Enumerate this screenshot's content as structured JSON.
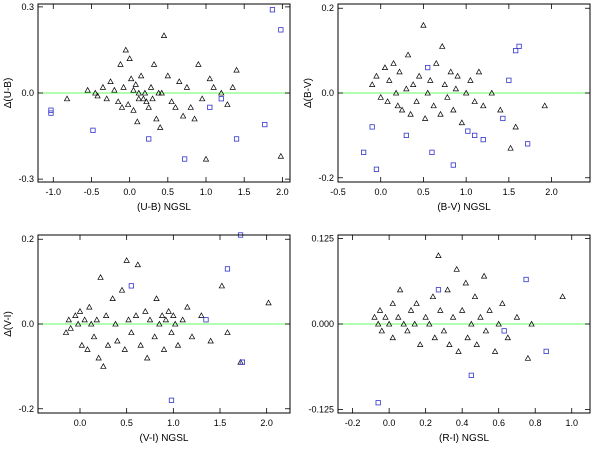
{
  "colors": {
    "frame": "#000000",
    "zero_line": "#66ff66",
    "triangle": "#000000",
    "square": "#3333cc"
  },
  "chart_data": [
    {
      "type": "scatter",
      "xlabel": "(U-B) NGSL",
      "ylabel": "Δ(U-B)",
      "xlim": [
        -1.2,
        2.1
      ],
      "ylim": [
        -0.31,
        0.31
      ],
      "xticks": [
        -1.0,
        -0.5,
        0.0,
        0.5,
        1.0,
        1.5,
        2.0
      ],
      "xtick_labels": [
        "-1.0",
        "-0.5",
        "0.0",
        "0.5",
        "1.0",
        "1.5",
        "2.0"
      ],
      "yticks": [
        -0.3,
        0.0,
        0.3
      ],
      "ytick_labels": [
        "-0.3",
        "0.0",
        "0.3"
      ],
      "zero_line": 0,
      "series": [
        {
          "marker": "triangle",
          "points": [
            [
              -0.82,
              -0.02
            ],
            [
              -0.55,
              0.01
            ],
            [
              -0.45,
              0.0
            ],
            [
              -0.42,
              -0.01
            ],
            [
              -0.35,
              0.02
            ],
            [
              -0.3,
              -0.02
            ],
            [
              -0.25,
              0.04
            ],
            [
              -0.2,
              0.01
            ],
            [
              -0.15,
              -0.03
            ],
            [
              -0.12,
              0.1
            ],
            [
              -0.1,
              -0.05
            ],
            [
              -0.08,
              0.02
            ],
            [
              -0.05,
              0.15
            ],
            [
              -0.02,
              -0.04
            ],
            [
              0.0,
              0.12
            ],
            [
              0.02,
              0.05
            ],
            [
              0.05,
              0.01
            ],
            [
              0.05,
              -0.06
            ],
            [
              0.08,
              0.03
            ],
            [
              0.1,
              -0.1
            ],
            [
              0.12,
              0.0
            ],
            [
              0.12,
              -0.02
            ],
            [
              0.15,
              0.06
            ],
            [
              0.18,
              -0.02
            ],
            [
              0.2,
              0.0
            ],
            [
              0.22,
              -0.03
            ],
            [
              0.25,
              -0.05
            ],
            [
              0.28,
              0.02
            ],
            [
              0.3,
              -0.02
            ],
            [
              0.32,
              0.1
            ],
            [
              0.35,
              -0.09
            ],
            [
              0.38,
              0.0
            ],
            [
              0.4,
              -0.12
            ],
            [
              0.42,
              0.0
            ],
            [
              0.45,
              0.2
            ],
            [
              0.5,
              0.06
            ],
            [
              0.55,
              -0.03
            ],
            [
              0.6,
              -0.05
            ],
            [
              0.65,
              0.04
            ],
            [
              0.7,
              -0.08
            ],
            [
              0.75,
              0.02
            ],
            [
              0.8,
              -0.05
            ],
            [
              0.85,
              -0.09
            ],
            [
              0.9,
              0.1
            ],
            [
              0.95,
              -0.02
            ],
            [
              1.0,
              -0.23
            ],
            [
              1.05,
              0.05
            ],
            [
              1.1,
              0.02
            ],
            [
              1.2,
              0.0
            ],
            [
              1.28,
              -0.04
            ],
            [
              1.35,
              0.02
            ],
            [
              1.4,
              0.08
            ],
            [
              1.98,
              -0.22
            ]
          ]
        },
        {
          "marker": "square",
          "points": [
            [
              -1.03,
              -0.07
            ],
            [
              -1.03,
              -0.06
            ],
            [
              -0.48,
              -0.13
            ],
            [
              0.25,
              -0.16
            ],
            [
              0.72,
              -0.23
            ],
            [
              1.05,
              -0.05
            ],
            [
              1.2,
              -0.02
            ],
            [
              1.4,
              -0.16
            ],
            [
              1.77,
              -0.11
            ],
            [
              1.87,
              0.29
            ],
            [
              1.98,
              0.22
            ]
          ]
        }
      ]
    },
    {
      "type": "scatter",
      "xlabel": "(B-V) NGSL",
      "ylabel": "Δ(B-V)",
      "xlim": [
        -0.5,
        2.45
      ],
      "ylim": [
        -0.21,
        0.21
      ],
      "xticks": [
        -0.5,
        0.0,
        0.5,
        1.0,
        1.5,
        2.0
      ],
      "xtick_labels": [
        "-0.5",
        "0.0",
        "0.5",
        "1.0",
        "1.5",
        "2.0"
      ],
      "yticks": [
        -0.2,
        0.0,
        0.2
      ],
      "ytick_labels": [
        "-0.2",
        "0.0",
        "0.2"
      ],
      "zero_line": 0,
      "series": [
        {
          "marker": "triangle",
          "points": [
            [
              -0.1,
              0.02
            ],
            [
              -0.05,
              0.04
            ],
            [
              0.0,
              -0.01
            ],
            [
              0.05,
              0.06
            ],
            [
              0.08,
              -0.02
            ],
            [
              0.1,
              0.03
            ],
            [
              0.15,
              0.07
            ],
            [
              0.18,
              0.0
            ],
            [
              0.2,
              -0.03
            ],
            [
              0.22,
              0.05
            ],
            [
              0.25,
              -0.04
            ],
            [
              0.3,
              0.01
            ],
            [
              0.32,
              0.09
            ],
            [
              0.35,
              -0.05
            ],
            [
              0.38,
              0.02
            ],
            [
              0.42,
              -0.02
            ],
            [
              0.45,
              0.04
            ],
            [
              0.5,
              0.16
            ],
            [
              0.52,
              -0.06
            ],
            [
              0.55,
              0.0
            ],
            [
              0.58,
              0.03
            ],
            [
              0.62,
              -0.03
            ],
            [
              0.65,
              0.07
            ],
            [
              0.7,
              -0.05
            ],
            [
              0.72,
              0.11
            ],
            [
              0.75,
              0.02
            ],
            [
              0.78,
              -0.01
            ],
            [
              0.82,
              0.05
            ],
            [
              0.85,
              -0.04
            ],
            [
              0.88,
              0.01
            ],
            [
              0.9,
              0.04
            ],
            [
              0.95,
              -0.07
            ],
            [
              1.0,
              0.0
            ],
            [
              1.05,
              0.03
            ],
            [
              1.1,
              -0.02
            ],
            [
              1.15,
              0.05
            ],
            [
              1.2,
              -0.03
            ],
            [
              1.3,
              0.0
            ],
            [
              1.4,
              -0.04
            ],
            [
              1.52,
              -0.13
            ],
            [
              1.58,
              -0.08
            ],
            [
              1.92,
              -0.03
            ]
          ]
        },
        {
          "marker": "square",
          "points": [
            [
              -0.2,
              -0.14
            ],
            [
              -0.1,
              -0.08
            ],
            [
              -0.05,
              -0.18
            ],
            [
              0.3,
              -0.1
            ],
            [
              0.55,
              0.06
            ],
            [
              0.6,
              -0.14
            ],
            [
              0.85,
              -0.17
            ],
            [
              1.02,
              -0.09
            ],
            [
              1.1,
              -0.1
            ],
            [
              1.2,
              -0.11
            ],
            [
              1.43,
              -0.06
            ],
            [
              1.5,
              0.03
            ],
            [
              1.58,
              0.1
            ],
            [
              1.62,
              0.11
            ],
            [
              1.72,
              -0.12
            ]
          ]
        }
      ]
    },
    {
      "type": "scatter",
      "xlabel": "(V-I) NGSL",
      "ylabel": "Δ(V-I)",
      "xlim": [
        -0.45,
        2.25
      ],
      "ylim": [
        -0.21,
        0.21
      ],
      "xticks": [
        0.0,
        0.5,
        1.0,
        1.5,
        2.0
      ],
      "xtick_labels": [
        "0.0",
        "0.5",
        "1.0",
        "1.5",
        "2.0"
      ],
      "yticks": [
        -0.2,
        0.0,
        0.2
      ],
      "ytick_labels": [
        "-0.2",
        "0.0",
        "0.2"
      ],
      "zero_line": 0,
      "series": [
        {
          "marker": "triangle",
          "points": [
            [
              -0.15,
              -0.02
            ],
            [
              -0.12,
              0.01
            ],
            [
              -0.1,
              -0.01
            ],
            [
              -0.05,
              0.02
            ],
            [
              -0.02,
              0.0
            ],
            [
              0.0,
              0.03
            ],
            [
              0.02,
              -0.05
            ],
            [
              0.05,
              0.01
            ],
            [
              0.08,
              -0.06
            ],
            [
              0.1,
              0.04
            ],
            [
              0.12,
              0.0
            ],
            [
              0.15,
              -0.03
            ],
            [
              0.18,
              0.01
            ],
            [
              0.2,
              -0.08
            ],
            [
              0.22,
              0.11
            ],
            [
              0.25,
              -0.1
            ],
            [
              0.28,
              0.02
            ],
            [
              0.3,
              -0.05
            ],
            [
              0.35,
              0.06
            ],
            [
              0.38,
              0.0
            ],
            [
              0.4,
              -0.04
            ],
            [
              0.45,
              0.08
            ],
            [
              0.48,
              -0.06
            ],
            [
              0.5,
              0.15
            ],
            [
              0.52,
              0.01
            ],
            [
              0.55,
              -0.02
            ],
            [
              0.6,
              0.02
            ],
            [
              0.62,
              0.14
            ],
            [
              0.65,
              -0.05
            ],
            [
              0.7,
              0.03
            ],
            [
              0.72,
              -0.08
            ],
            [
              0.75,
              0.01
            ],
            [
              0.8,
              -0.03
            ],
            [
              0.82,
              0.06
            ],
            [
              0.85,
              0.0
            ],
            [
              0.88,
              0.02
            ],
            [
              0.9,
              -0.06
            ],
            [
              0.92,
              0.01
            ],
            [
              0.95,
              0.03
            ],
            [
              0.98,
              -0.02
            ],
            [
              1.0,
              0.02
            ],
            [
              1.02,
              0.0
            ],
            [
              1.05,
              -0.05
            ],
            [
              1.1,
              0.01
            ],
            [
              1.15,
              0.04
            ],
            [
              1.2,
              -0.03
            ],
            [
              1.3,
              0.02
            ],
            [
              1.4,
              -0.04
            ],
            [
              1.52,
              0.09
            ],
            [
              1.58,
              -0.02
            ],
            [
              1.72,
              -0.09
            ],
            [
              2.02,
              0.05
            ]
          ]
        },
        {
          "marker": "square",
          "points": [
            [
              0.55,
              0.09
            ],
            [
              0.98,
              -0.18
            ],
            [
              1.35,
              0.01
            ],
            [
              1.58,
              0.13
            ],
            [
              1.72,
              0.21
            ],
            [
              1.74,
              -0.09
            ]
          ]
        }
      ]
    },
    {
      "type": "scatter",
      "xlabel": "(R-I) NGSL",
      "ylabel": "",
      "xlim": [
        -0.28,
        1.1
      ],
      "ylim": [
        -0.13,
        0.13
      ],
      "xticks": [
        -0.2,
        0.0,
        0.2,
        0.4,
        0.6,
        0.8,
        1.0
      ],
      "xtick_labels": [
        "-0.2",
        "0.0",
        "0.2",
        "0.4",
        "0.6",
        "0.8",
        "1.0"
      ],
      "yticks": [
        -0.125,
        0.0,
        0.125
      ],
      "ytick_labels": [
        "-0.125",
        "0.000",
        "0.125"
      ],
      "zero_line": 0,
      "series": [
        {
          "marker": "triangle",
          "points": [
            [
              -0.08,
              0.01
            ],
            [
              -0.06,
              0.0
            ],
            [
              -0.05,
              0.02
            ],
            [
              -0.04,
              -0.01
            ],
            [
              -0.02,
              0.01
            ],
            [
              0.0,
              0.0
            ],
            [
              0.02,
              0.03
            ],
            [
              0.02,
              -0.02
            ],
            [
              0.05,
              0.01
            ],
            [
              0.06,
              0.05
            ],
            [
              0.08,
              0.0
            ],
            [
              0.1,
              -0.01
            ],
            [
              0.12,
              0.02
            ],
            [
              0.14,
              0.0
            ],
            [
              0.15,
              0.03
            ],
            [
              0.17,
              -0.03
            ],
            [
              0.2,
              0.01
            ],
            [
              0.22,
              0.0
            ],
            [
              0.24,
              0.04
            ],
            [
              0.25,
              -0.02
            ],
            [
              0.27,
              0.1
            ],
            [
              0.28,
              0.02
            ],
            [
              0.3,
              -0.01
            ],
            [
              0.32,
              0.05
            ],
            [
              0.33,
              -0.03
            ],
            [
              0.35,
              0.01
            ],
            [
              0.37,
              0.08
            ],
            [
              0.38,
              -0.04
            ],
            [
              0.4,
              0.02
            ],
            [
              0.42,
              0.06
            ],
            [
              0.43,
              -0.02
            ],
            [
              0.45,
              0.0
            ],
            [
              0.47,
              0.04
            ],
            [
              0.48,
              -0.03
            ],
            [
              0.5,
              0.01
            ],
            [
              0.52,
              0.07
            ],
            [
              0.53,
              -0.01
            ],
            [
              0.55,
              0.02
            ],
            [
              0.58,
              -0.04
            ],
            [
              0.6,
              0.0
            ],
            [
              0.62,
              0.03
            ],
            [
              0.65,
              -0.02
            ],
            [
              0.7,
              0.01
            ],
            [
              0.76,
              -0.05
            ],
            [
              0.78,
              0.0
            ],
            [
              0.95,
              0.04
            ]
          ]
        },
        {
          "marker": "square",
          "points": [
            [
              -0.06,
              -0.115
            ],
            [
              0.27,
              0.05
            ],
            [
              0.45,
              -0.075
            ],
            [
              0.63,
              -0.01
            ],
            [
              0.75,
              0.065
            ],
            [
              0.86,
              -0.04
            ]
          ]
        }
      ]
    }
  ]
}
